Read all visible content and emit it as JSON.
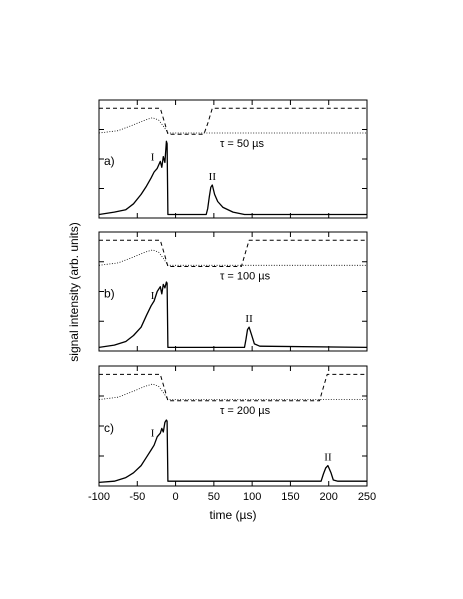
{
  "chart_data": [
    {
      "type": "line",
      "panel_label": "a)",
      "annotation": "τ = 50  µs",
      "tau": 50,
      "peak_labels": [
        "I",
        "II"
      ],
      "xlim": [
        -100,
        250
      ],
      "ylim": [
        0,
        1
      ],
      "series": [
        {
          "style": "dashed",
          "points": [
            [
              -100,
              0.93
            ],
            [
              -20,
              0.93
            ],
            [
              -14,
              0.8
            ],
            [
              -10,
              0.71
            ],
            [
              37,
              0.71
            ],
            [
              42,
              0.8
            ],
            [
              48,
              0.93
            ],
            [
              250,
              0.93
            ]
          ]
        },
        {
          "style": "dotted",
          "points": [
            [
              -100,
              0.72
            ],
            [
              -75,
              0.74
            ],
            [
              -55,
              0.79
            ],
            [
              -40,
              0.83
            ],
            [
              -30,
              0.85
            ],
            [
              -22,
              0.83
            ],
            [
              -15,
              0.77
            ],
            [
              -10,
              0.72
            ],
            [
              250,
              0.72
            ]
          ]
        },
        {
          "style": "solid",
          "points": [
            [
              -100,
              0.03
            ],
            [
              -80,
              0.05
            ],
            [
              -65,
              0.07
            ],
            [
              -55,
              0.12
            ],
            [
              -45,
              0.2
            ],
            [
              -38,
              0.27
            ],
            [
              -32,
              0.34
            ],
            [
              -28,
              0.39
            ],
            [
              -24,
              0.42
            ],
            [
              -20,
              0.48
            ],
            [
              -18,
              0.43
            ],
            [
              -16,
              0.52
            ],
            [
              -14,
              0.47
            ],
            [
              -12,
              0.65
            ],
            [
              -11,
              0.63
            ],
            [
              -10,
              0.03
            ],
            [
              40,
              0.03
            ],
            [
              42,
              0.08
            ],
            [
              44,
              0.18
            ],
            [
              46,
              0.26
            ],
            [
              48,
              0.28
            ],
            [
              51,
              0.2
            ],
            [
              55,
              0.14
            ],
            [
              62,
              0.09
            ],
            [
              75,
              0.05
            ],
            [
              90,
              0.03
            ],
            [
              250,
              0.03
            ]
          ]
        }
      ]
    },
    {
      "type": "line",
      "panel_label": "b)",
      "annotation": "τ = 100  µs",
      "tau": 100,
      "peak_labels": [
        "I",
        "II"
      ],
      "xlim": [
        -100,
        250
      ],
      "ylim": [
        0,
        1
      ],
      "series": [
        {
          "style": "dashed",
          "points": [
            [
              -100,
              0.93
            ],
            [
              -20,
              0.93
            ],
            [
              -14,
              0.8
            ],
            [
              -10,
              0.71
            ],
            [
              86,
              0.71
            ],
            [
              90,
              0.8
            ],
            [
              96,
              0.93
            ],
            [
              250,
              0.93
            ]
          ]
        },
        {
          "style": "dotted",
          "points": [
            [
              -100,
              0.72
            ],
            [
              -75,
              0.74
            ],
            [
              -55,
              0.79
            ],
            [
              -40,
              0.83
            ],
            [
              -30,
              0.85
            ],
            [
              -22,
              0.83
            ],
            [
              -15,
              0.77
            ],
            [
              -10,
              0.72
            ],
            [
              250,
              0.72
            ]
          ]
        },
        {
          "style": "solid",
          "points": [
            [
              -100,
              0.03
            ],
            [
              -80,
              0.05
            ],
            [
              -65,
              0.08
            ],
            [
              -55,
              0.13
            ],
            [
              -45,
              0.2
            ],
            [
              -38,
              0.3
            ],
            [
              -32,
              0.38
            ],
            [
              -28,
              0.42
            ],
            [
              -24,
              0.5
            ],
            [
              -20,
              0.54
            ],
            [
              -18,
              0.48
            ],
            [
              -16,
              0.56
            ],
            [
              -14,
              0.53
            ],
            [
              -12,
              0.58
            ],
            [
              -11,
              0.57
            ],
            [
              -10,
              0.03
            ],
            [
              90,
              0.03
            ],
            [
              92,
              0.1
            ],
            [
              94,
              0.18
            ],
            [
              96,
              0.2
            ],
            [
              99,
              0.14
            ],
            [
              103,
              0.06
            ],
            [
              110,
              0.04
            ],
            [
              250,
              0.03
            ]
          ]
        }
      ]
    },
    {
      "type": "line",
      "panel_label": "c)",
      "annotation": "τ = 200  µs",
      "tau": 200,
      "peak_labels": [
        "I",
        "II"
      ],
      "xlim": [
        -100,
        250
      ],
      "ylim": [
        0,
        1
      ],
      "series": [
        {
          "style": "dashed",
          "points": [
            [
              -100,
              0.93
            ],
            [
              -20,
              0.93
            ],
            [
              -14,
              0.8
            ],
            [
              -10,
              0.71
            ],
            [
              188,
              0.71
            ],
            [
              192,
              0.8
            ],
            [
              198,
              0.93
            ],
            [
              250,
              0.93
            ]
          ]
        },
        {
          "style": "dotted",
          "points": [
            [
              -100,
              0.72
            ],
            [
              -75,
              0.74
            ],
            [
              -55,
              0.79
            ],
            [
              -40,
              0.83
            ],
            [
              -30,
              0.85
            ],
            [
              -22,
              0.83
            ],
            [
              -15,
              0.77
            ],
            [
              -10,
              0.72
            ],
            [
              250,
              0.72
            ]
          ]
        },
        {
          "style": "solid",
          "points": [
            [
              -100,
              0.03
            ],
            [
              -80,
              0.04
            ],
            [
              -65,
              0.07
            ],
            [
              -55,
              0.11
            ],
            [
              -45,
              0.17
            ],
            [
              -38,
              0.24
            ],
            [
              -32,
              0.3
            ],
            [
              -28,
              0.34
            ],
            [
              -24,
              0.41
            ],
            [
              -20,
              0.44
            ],
            [
              -18,
              0.48
            ],
            [
              -16,
              0.45
            ],
            [
              -14,
              0.53
            ],
            [
              -12,
              0.55
            ],
            [
              -11,
              0.54
            ],
            [
              -10,
              0.04
            ],
            [
              190,
              0.04
            ],
            [
              193,
              0.1
            ],
            [
              196,
              0.15
            ],
            [
              199,
              0.17
            ],
            [
              203,
              0.11
            ],
            [
              206,
              0.05
            ],
            [
              212,
              0.04
            ],
            [
              250,
              0.04
            ]
          ]
        }
      ]
    }
  ],
  "x_axis": {
    "label": "time (µs)",
    "ticks": [
      -100,
      -50,
      0,
      50,
      100,
      150,
      200,
      250
    ],
    "tick_labels": [
      "-100",
      "-50",
      "0",
      "50",
      "100",
      "150",
      "200",
      "250"
    ]
  },
  "y_axis": {
    "label": "signal intensity (arb. units)"
  }
}
